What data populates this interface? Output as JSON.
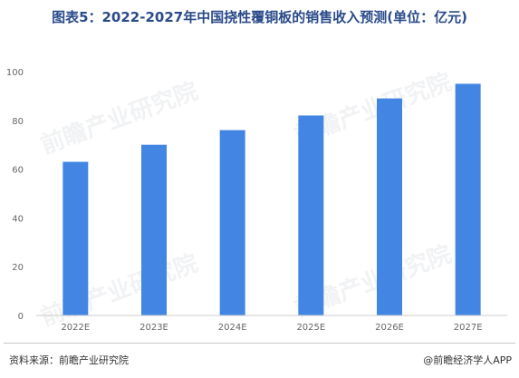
{
  "title": "图表5：2022-2027年中国挠性覆铜板的销售收入预测(单位：亿元)",
  "watermark_text": "前瞻产业研究院",
  "footer": {
    "source": "资料来源：前瞻产业研究院",
    "brand": "@前瞻经济学人APP"
  },
  "colors": {
    "bar": "#4285e3",
    "title": "#2a4a8a",
    "axis": "#cccccc"
  },
  "chart_data": {
    "type": "bar",
    "title": "图表5：2022-2027年中国挠性覆铜板的销售收入预测(单位：亿元)",
    "xlabel": "",
    "ylabel": "",
    "categories": [
      "2022E",
      "2023E",
      "2024E",
      "2025E",
      "2026E",
      "2027E"
    ],
    "values": [
      63,
      70,
      76,
      82,
      89,
      95
    ],
    "ylim": [
      0,
      100
    ],
    "yticks": [
      0,
      20,
      40,
      60,
      80,
      100
    ],
    "grid": false,
    "legend": "none"
  }
}
